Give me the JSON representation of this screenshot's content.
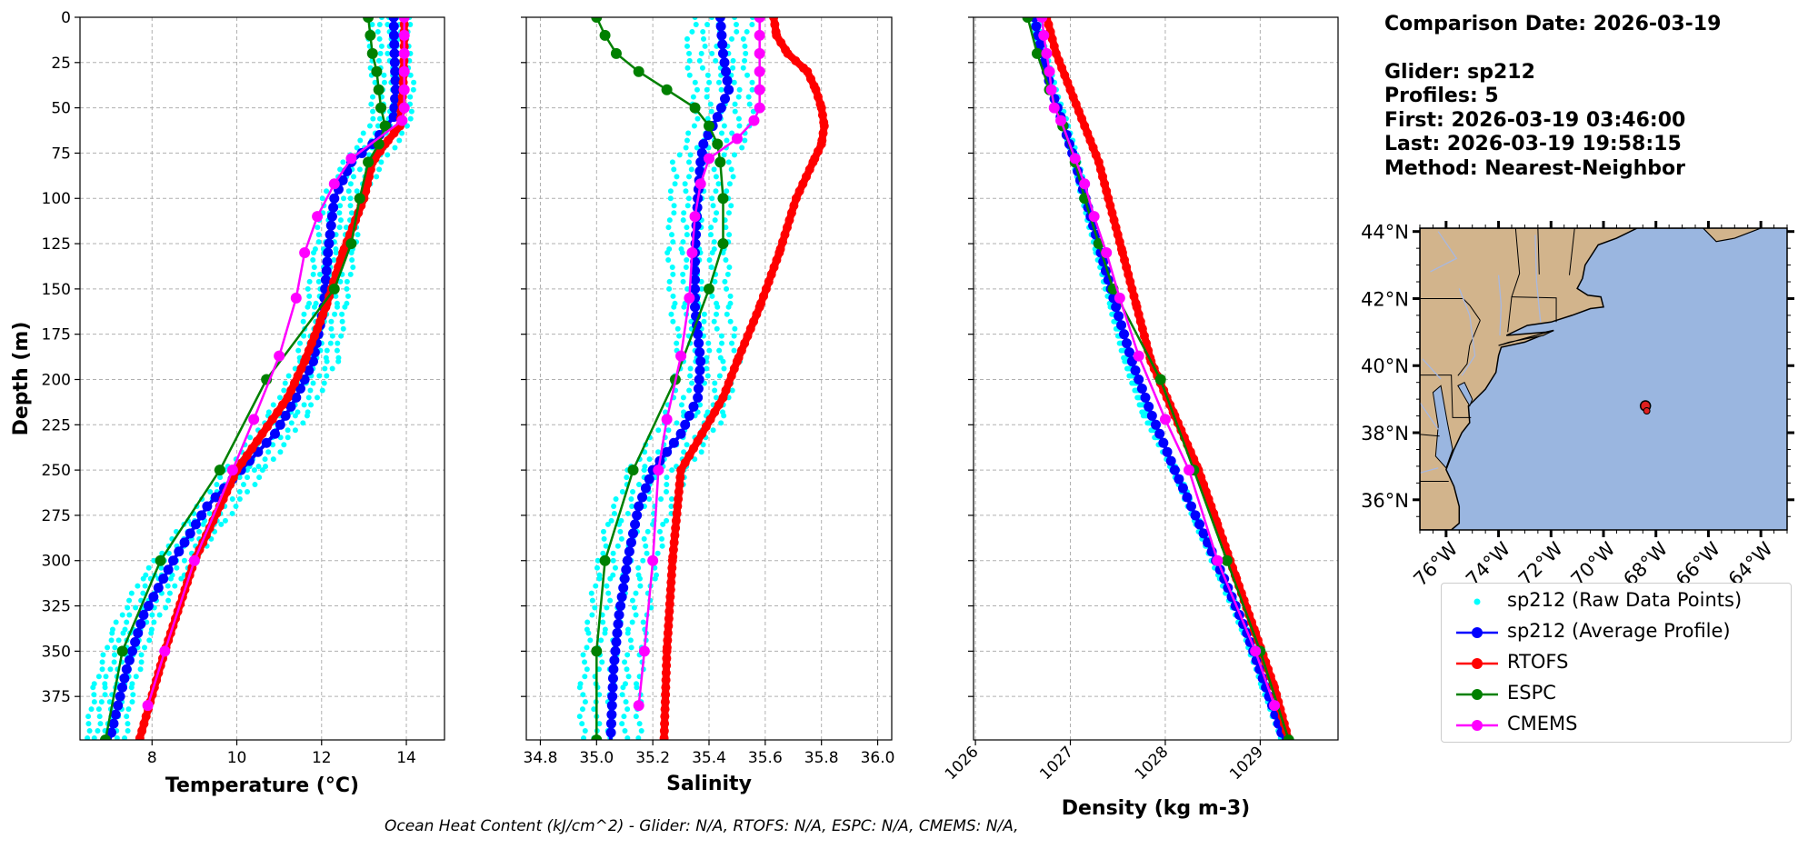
{
  "info": {
    "comparison_date": "Comparison Date: 2026-03-19",
    "glider": "Glider: sp212",
    "profiles": "Profiles: 5",
    "first": "First: 2026-03-19 03:46:00",
    "last": "Last: 2026-03-19 19:58:15",
    "method": "Method: Nearest-Neighbor"
  },
  "footer": "Ocean Heat Content (kJ/cm^2) - Glider: N/A,  RTOFS: N/A,  ESPC: N/A,  CMEMS: N/A,",
  "colors": {
    "raw": "#00ffff",
    "average": "#0000ff",
    "rtofs": "#ff0000",
    "espc": "#008000",
    "cmems": "#ff00ff",
    "land": "#d2b48c",
    "ocean": "#9ab6e0",
    "grid": "#b0b0b0"
  },
  "legend": [
    {
      "key": "raw",
      "label": "sp212 (Raw Data Points)",
      "style": "dots"
    },
    {
      "key": "average",
      "label": "sp212 (Average Profile)",
      "style": "line-marker"
    },
    {
      "key": "rtofs",
      "label": "RTOFS",
      "style": "line-marker"
    },
    {
      "key": "espc",
      "label": "ESPC",
      "style": "line-marker"
    },
    {
      "key": "cmems",
      "label": "CMEMS",
      "style": "line-marker"
    }
  ],
  "map": {
    "lat_ticks": [
      "44°N",
      "42°N",
      "40°N",
      "38°N",
      "36°N"
    ],
    "lat_values": [
      44,
      42,
      40,
      38,
      36
    ],
    "lon_ticks": [
      "76°W",
      "74°W",
      "72°W",
      "70°W",
      "68°W",
      "66°W",
      "64°W"
    ],
    "lon_values": [
      -76,
      -74,
      -72,
      -70,
      -68,
      -66,
      -64
    ],
    "extent": {
      "lon_min": -77,
      "lon_max": -63,
      "lat_min": 35.1,
      "lat_max": 44.1
    },
    "glider_position": {
      "lon": -68.4,
      "lat": 38.8
    }
  },
  "chart_data": [
    {
      "type": "line",
      "xlabel": "Temperature (°C)",
      "ylabel": "Depth (m)",
      "xlim": [
        6.3,
        14.9
      ],
      "ylim": [
        399,
        0
      ],
      "xticks": [
        8,
        10,
        12,
        14
      ],
      "yticks": [
        0,
        25,
        50,
        75,
        100,
        125,
        150,
        175,
        200,
        225,
        250,
        275,
        300,
        325,
        350,
        375
      ],
      "series": [
        {
          "name": "sp212 (Raw Data Points)",
          "key": "raw",
          "depths": [
            0,
            20,
            40,
            60,
            80,
            100,
            130,
            160,
            190,
            220,
            250,
            280,
            310,
            340,
            370,
            399
          ],
          "values": [
            13.6,
            13.6,
            13.7,
            13.6,
            13.0,
            12.5,
            12.3,
            12.1,
            11.9,
            11.2,
            10.2,
            9.2,
            8.2,
            7.5,
            7.1,
            6.9
          ],
          "spread": 0.45
        },
        {
          "name": "sp212 (Average Profile)",
          "key": "average",
          "depths": [
            0,
            20,
            40,
            55,
            70,
            80,
            100,
            130,
            160,
            190,
            210,
            230,
            250,
            270,
            300,
            330,
            360,
            399
          ],
          "values": [
            13.7,
            13.72,
            13.75,
            13.7,
            13.2,
            12.7,
            12.3,
            12.15,
            12.05,
            11.8,
            11.4,
            10.9,
            10.1,
            9.3,
            8.5,
            7.8,
            7.4,
            7.0
          ]
        },
        {
          "name": "RTOFS",
          "key": "rtofs",
          "depths": [
            0,
            20,
            40,
            60,
            70,
            80,
            100,
            130,
            160,
            190,
            210,
            250,
            300,
            350,
            399
          ],
          "values": [
            13.95,
            13.95,
            13.92,
            13.85,
            13.5,
            13.2,
            13.0,
            12.5,
            12.1,
            11.6,
            11.2,
            10.0,
            9.0,
            8.3,
            7.7
          ]
        },
        {
          "name": "ESPC",
          "key": "espc",
          "depths": [
            0,
            10,
            20,
            30,
            40,
            50,
            60,
            70,
            80,
            100,
            125,
            150,
            200,
            250,
            300,
            350,
            399
          ],
          "values": [
            13.1,
            13.15,
            13.2,
            13.3,
            13.35,
            13.4,
            13.5,
            13.35,
            13.1,
            12.9,
            12.7,
            12.3,
            10.7,
            9.6,
            8.2,
            7.3,
            6.9
          ]
        },
        {
          "name": "CMEMS",
          "key": "cmems",
          "depths": [
            0,
            10,
            20,
            30,
            40,
            50,
            57,
            78,
            92,
            110,
            130,
            155,
            187,
            222,
            250,
            300,
            350,
            380
          ],
          "values": [
            13.95,
            13.95,
            13.95,
            13.95,
            13.95,
            13.95,
            13.9,
            12.7,
            12.3,
            11.9,
            11.6,
            11.4,
            11.0,
            10.4,
            9.9,
            9.0,
            8.3,
            7.9
          ]
        }
      ]
    },
    {
      "type": "line",
      "xlabel": "Salinity",
      "ylabel": "",
      "xlim": [
        34.75,
        36.05
      ],
      "ylim": [
        399,
        0
      ],
      "xticks": [
        34.8,
        35.0,
        35.2,
        35.4,
        35.6,
        35.8,
        36.0
      ],
      "yticks": [
        0,
        25,
        50,
        75,
        100,
        125,
        150,
        175,
        200,
        225,
        250,
        275,
        300,
        325,
        350,
        375
      ],
      "series": [
        {
          "name": "sp212 (Raw Data Points)",
          "key": "raw",
          "depths": [
            0,
            20,
            40,
            60,
            80,
            100,
            130,
            160,
            190,
            220,
            250,
            280,
            310,
            340,
            370,
            399
          ],
          "values": [
            35.45,
            35.42,
            35.45,
            35.45,
            35.38,
            35.37,
            35.36,
            35.37,
            35.4,
            35.35,
            35.22,
            35.14,
            35.1,
            35.07,
            35.05,
            35.05
          ],
          "spread": 0.1
        },
        {
          "name": "sp212 (Average Profile)",
          "key": "average",
          "depths": [
            0,
            20,
            40,
            55,
            70,
            80,
            100,
            130,
            160,
            190,
            210,
            230,
            250,
            270,
            300,
            330,
            360,
            399
          ],
          "values": [
            35.44,
            35.45,
            35.47,
            35.43,
            35.38,
            35.37,
            35.36,
            35.35,
            35.35,
            35.37,
            35.36,
            35.3,
            35.2,
            35.15,
            35.11,
            35.08,
            35.06,
            35.05
          ]
        },
        {
          "name": "RTOFS",
          "key": "rtofs",
          "depths": [
            0,
            10,
            20,
            30,
            40,
            50,
            60,
            70,
            80,
            100,
            130,
            160,
            190,
            210,
            250,
            300,
            350,
            399
          ],
          "values": [
            35.63,
            35.64,
            35.68,
            35.75,
            35.78,
            35.8,
            35.81,
            35.8,
            35.77,
            35.71,
            35.65,
            35.58,
            35.5,
            35.45,
            35.3,
            35.27,
            35.25,
            35.24
          ]
        },
        {
          "name": "ESPC",
          "key": "espc",
          "depths": [
            0,
            10,
            20,
            30,
            40,
            50,
            60,
            70,
            80,
            100,
            125,
            150,
            200,
            250,
            300,
            350,
            399
          ],
          "values": [
            35.0,
            35.03,
            35.07,
            35.15,
            35.25,
            35.35,
            35.4,
            35.43,
            35.44,
            35.45,
            35.45,
            35.4,
            35.28,
            35.13,
            35.03,
            35.0,
            35.0
          ]
        },
        {
          "name": "CMEMS",
          "key": "cmems",
          "depths": [
            0,
            10,
            20,
            30,
            40,
            50,
            57,
            67,
            78,
            92,
            110,
            130,
            155,
            187,
            222,
            250,
            300,
            350,
            380
          ],
          "values": [
            35.58,
            35.58,
            35.58,
            35.58,
            35.58,
            35.58,
            35.56,
            35.5,
            35.4,
            35.37,
            35.35,
            35.34,
            35.33,
            35.3,
            35.25,
            35.22,
            35.2,
            35.17,
            35.15
          ]
        }
      ]
    },
    {
      "type": "line",
      "xlabel": "Density (kg m-3)",
      "ylabel": "",
      "xlim": [
        1025.98,
        1029.82
      ],
      "ylim": [
        399,
        0
      ],
      "xticks": [
        1026,
        1027,
        1028,
        1029
      ],
      "yticks": [
        0,
        25,
        50,
        75,
        100,
        125,
        150,
        175,
        200,
        225,
        250,
        275,
        300,
        325,
        350,
        375
      ],
      "series": [
        {
          "name": "sp212 (Raw Data Points)",
          "key": "raw",
          "depths": [
            0,
            20,
            40,
            60,
            80,
            100,
            130,
            160,
            190,
            220,
            250,
            280,
            310,
            340,
            370,
            399
          ],
          "values": [
            1026.62,
            1026.72,
            1026.82,
            1026.95,
            1027.06,
            1027.15,
            1027.3,
            1027.45,
            1027.6,
            1027.8,
            1028.1,
            1028.35,
            1028.6,
            1028.85,
            1029.05,
            1029.25
          ],
          "spread": 0.03
        },
        {
          "name": "sp212 (Average Profile)",
          "key": "average",
          "depths": [
            0,
            20,
            40,
            60,
            80,
            100,
            130,
            160,
            190,
            220,
            250,
            280,
            310,
            340,
            370,
            399
          ],
          "values": [
            1026.62,
            1026.7,
            1026.8,
            1026.93,
            1027.05,
            1027.16,
            1027.32,
            1027.48,
            1027.65,
            1027.86,
            1028.1,
            1028.36,
            1028.62,
            1028.86,
            1029.06,
            1029.25
          ]
        },
        {
          "name": "RTOFS",
          "key": "rtofs",
          "depths": [
            0,
            20,
            40,
            60,
            80,
            100,
            130,
            160,
            190,
            220,
            250,
            280,
            310,
            340,
            370,
            399
          ],
          "values": [
            1026.75,
            1026.85,
            1027.0,
            1027.15,
            1027.3,
            1027.4,
            1027.55,
            1027.7,
            1027.85,
            1028.1,
            1028.35,
            1028.55,
            1028.75,
            1028.95,
            1029.15,
            1029.3
          ]
        },
        {
          "name": "ESPC",
          "key": "espc",
          "depths": [
            0,
            20,
            40,
            60,
            80,
            100,
            125,
            150,
            200,
            250,
            300,
            350,
            399
          ],
          "values": [
            1026.55,
            1026.65,
            1026.78,
            1026.92,
            1027.05,
            1027.15,
            1027.3,
            1027.45,
            1027.95,
            1028.3,
            1028.65,
            1029.0,
            1029.3
          ]
        },
        {
          "name": "CMEMS",
          "key": "cmems",
          "depths": [
            0,
            10,
            20,
            30,
            40,
            50,
            57,
            78,
            92,
            110,
            130,
            155,
            187,
            222,
            250,
            300,
            350,
            380
          ],
          "values": [
            1026.7,
            1026.72,
            1026.75,
            1026.78,
            1026.8,
            1026.83,
            1026.9,
            1027.05,
            1027.15,
            1027.25,
            1027.38,
            1027.52,
            1027.72,
            1028.0,
            1028.25,
            1028.55,
            1028.95,
            1029.15
          ]
        }
      ]
    }
  ]
}
